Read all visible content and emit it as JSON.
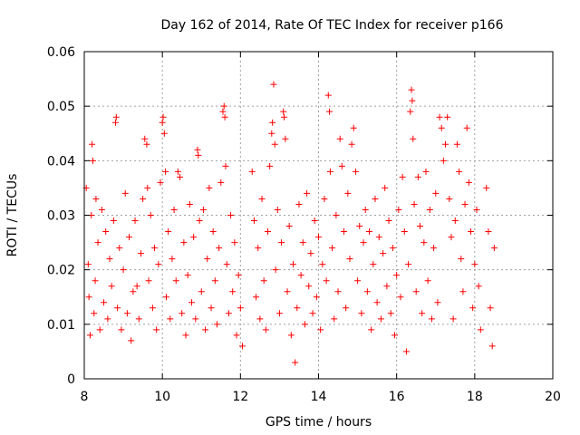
{
  "chart_data": {
    "type": "scatter",
    "title": "Day 162 of 2014, Rate Of TEC Index for receiver p166",
    "xlabel": "GPS time / hours",
    "ylabel": "ROTI / TECUs",
    "xlim": [
      8,
      20
    ],
    "ylim": [
      0,
      0.06
    ],
    "xticks": [
      8,
      10,
      12,
      14,
      16,
      18,
      20
    ],
    "xtick_labels": [
      "8",
      "10",
      "12",
      "14",
      "16",
      "18",
      "20"
    ],
    "yticks": [
      0,
      0.01,
      0.02,
      0.03,
      0.04,
      0.05,
      0.06
    ],
    "ytick_labels": [
      "0",
      "0.01",
      "0.02",
      "0.03",
      "0.04",
      "0.05",
      "0.06"
    ],
    "grid": true,
    "marker": "+",
    "marker_color": "#ff0000",
    "series": [
      {
        "name": "ROTI",
        "points": [
          [
            8.05,
            0.035
          ],
          [
            8.1,
            0.021
          ],
          [
            8.12,
            0.015
          ],
          [
            8.15,
            0.008
          ],
          [
            8.18,
            0.03
          ],
          [
            8.2,
            0.043
          ],
          [
            8.22,
            0.04
          ],
          [
            8.25,
            0.012
          ],
          [
            8.28,
            0.018
          ],
          [
            8.3,
            0.033
          ],
          [
            8.35,
            0.025
          ],
          [
            8.4,
            0.009
          ],
          [
            8.45,
            0.031
          ],
          [
            8.5,
            0.014
          ],
          [
            8.55,
            0.027
          ],
          [
            8.6,
            0.011
          ],
          [
            8.65,
            0.022
          ],
          [
            8.7,
            0.017
          ],
          [
            8.75,
            0.029
          ],
          [
            8.8,
            0.047
          ],
          [
            8.82,
            0.048
          ],
          [
            8.85,
            0.013
          ],
          [
            8.9,
            0.024
          ],
          [
            8.95,
            0.009
          ],
          [
            9.0,
            0.02
          ],
          [
            9.05,
            0.034
          ],
          [
            9.1,
            0.012
          ],
          [
            9.15,
            0.026
          ],
          [
            9.2,
            0.007
          ],
          [
            9.25,
            0.016
          ],
          [
            9.3,
            0.029
          ],
          [
            9.35,
            0.017
          ],
          [
            9.4,
            0.011
          ],
          [
            9.45,
            0.023
          ],
          [
            9.5,
            0.033
          ],
          [
            9.55,
            0.044
          ],
          [
            9.6,
            0.043
          ],
          [
            9.62,
            0.035
          ],
          [
            9.65,
            0.018
          ],
          [
            9.7,
            0.03
          ],
          [
            9.75,
            0.013
          ],
          [
            9.8,
            0.024
          ],
          [
            9.85,
            0.009
          ],
          [
            9.9,
            0.021
          ],
          [
            9.95,
            0.036
          ],
          [
            10.0,
            0.047
          ],
          [
            10.02,
            0.048
          ],
          [
            10.05,
            0.045
          ],
          [
            10.08,
            0.038
          ],
          [
            10.1,
            0.015
          ],
          [
            10.15,
            0.027
          ],
          [
            10.2,
            0.011
          ],
          [
            10.25,
            0.022
          ],
          [
            10.3,
            0.031
          ],
          [
            10.35,
            0.018
          ],
          [
            10.4,
            0.038
          ],
          [
            10.45,
            0.037
          ],
          [
            10.5,
            0.012
          ],
          [
            10.55,
            0.025
          ],
          [
            10.6,
            0.008
          ],
          [
            10.65,
            0.019
          ],
          [
            10.7,
            0.032
          ],
          [
            10.75,
            0.014
          ],
          [
            10.8,
            0.026
          ],
          [
            10.85,
            0.011
          ],
          [
            10.9,
            0.042
          ],
          [
            10.92,
            0.041
          ],
          [
            10.95,
            0.029
          ],
          [
            11.0,
            0.016
          ],
          [
            11.05,
            0.031
          ],
          [
            11.1,
            0.009
          ],
          [
            11.15,
            0.022
          ],
          [
            11.2,
            0.035
          ],
          [
            11.25,
            0.013
          ],
          [
            11.3,
            0.027
          ],
          [
            11.35,
            0.018
          ],
          [
            11.4,
            0.01
          ],
          [
            11.45,
            0.024
          ],
          [
            11.5,
            0.036
          ],
          [
            11.55,
            0.049
          ],
          [
            11.58,
            0.05
          ],
          [
            11.6,
            0.048
          ],
          [
            11.62,
            0.039
          ],
          [
            11.65,
            0.021
          ],
          [
            11.7,
            0.012
          ],
          [
            11.75,
            0.03
          ],
          [
            11.8,
            0.016
          ],
          [
            11.85,
            0.025
          ],
          [
            11.9,
            0.008
          ],
          [
            11.95,
            0.019
          ],
          [
            12.0,
            0.013
          ],
          [
            12.05,
            0.006
          ],
          [
            12.3,
            0.038
          ],
          [
            12.35,
            0.029
          ],
          [
            12.4,
            0.015
          ],
          [
            12.45,
            0.024
          ],
          [
            12.5,
            0.011
          ],
          [
            12.55,
            0.033
          ],
          [
            12.6,
            0.018
          ],
          [
            12.65,
            0.009
          ],
          [
            12.7,
            0.027
          ],
          [
            12.75,
            0.039
          ],
          [
            12.8,
            0.045
          ],
          [
            12.82,
            0.047
          ],
          [
            12.85,
            0.054
          ],
          [
            12.88,
            0.043
          ],
          [
            12.9,
            0.02
          ],
          [
            12.95,
            0.031
          ],
          [
            13.0,
            0.012
          ],
          [
            13.05,
            0.025
          ],
          [
            13.1,
            0.049
          ],
          [
            13.12,
            0.048
          ],
          [
            13.15,
            0.044
          ],
          [
            13.2,
            0.016
          ],
          [
            13.25,
            0.028
          ],
          [
            13.3,
            0.008
          ],
          [
            13.35,
            0.021
          ],
          [
            13.4,
            0.003
          ],
          [
            13.45,
            0.013
          ],
          [
            13.5,
            0.032
          ],
          [
            13.55,
            0.019
          ],
          [
            13.6,
            0.025
          ],
          [
            13.65,
            0.01
          ],
          [
            13.7,
            0.034
          ],
          [
            13.75,
            0.017
          ],
          [
            13.8,
            0.023
          ],
          [
            13.85,
            0.012
          ],
          [
            13.9,
            0.029
          ],
          [
            13.95,
            0.015
          ],
          [
            14.0,
            0.026
          ],
          [
            14.05,
            0.009
          ],
          [
            14.1,
            0.021
          ],
          [
            14.15,
            0.033
          ],
          [
            14.2,
            0.018
          ],
          [
            14.25,
            0.052
          ],
          [
            14.28,
            0.049
          ],
          [
            14.3,
            0.038
          ],
          [
            14.35,
            0.024
          ],
          [
            14.4,
            0.011
          ],
          [
            14.45,
            0.03
          ],
          [
            14.5,
            0.016
          ],
          [
            14.55,
            0.044
          ],
          [
            14.6,
            0.039
          ],
          [
            14.65,
            0.027
          ],
          [
            14.7,
            0.013
          ],
          [
            14.75,
            0.034
          ],
          [
            14.8,
            0.022
          ],
          [
            14.85,
            0.043
          ],
          [
            14.9,
            0.046
          ],
          [
            14.95,
            0.038
          ],
          [
            15.0,
            0.018
          ],
          [
            15.05,
            0.028
          ],
          [
            15.1,
            0.012
          ],
          [
            15.15,
            0.025
          ],
          [
            15.2,
            0.031
          ],
          [
            15.25,
            0.016
          ],
          [
            15.3,
            0.027
          ],
          [
            15.35,
            0.009
          ],
          [
            15.4,
            0.021
          ],
          [
            15.45,
            0.033
          ],
          [
            15.5,
            0.014
          ],
          [
            15.55,
            0.026
          ],
          [
            15.6,
            0.011
          ],
          [
            15.65,
            0.023
          ],
          [
            15.7,
            0.035
          ],
          [
            15.75,
            0.017
          ],
          [
            15.8,
            0.029
          ],
          [
            15.85,
            0.012
          ],
          [
            15.9,
            0.024
          ],
          [
            15.95,
            0.008
          ],
          [
            16.0,
            0.019
          ],
          [
            16.05,
            0.031
          ],
          [
            16.1,
            0.015
          ],
          [
            16.15,
            0.037
          ],
          [
            16.2,
            0.027
          ],
          [
            16.25,
            0.005
          ],
          [
            16.3,
            0.021
          ],
          [
            16.35,
            0.049
          ],
          [
            16.38,
            0.053
          ],
          [
            16.4,
            0.051
          ],
          [
            16.42,
            0.044
          ],
          [
            16.45,
            0.032
          ],
          [
            16.5,
            0.016
          ],
          [
            16.55,
            0.037
          ],
          [
            16.6,
            0.028
          ],
          [
            16.65,
            0.012
          ],
          [
            16.7,
            0.025
          ],
          [
            16.75,
            0.038
          ],
          [
            16.8,
            0.018
          ],
          [
            16.85,
            0.031
          ],
          [
            16.9,
            0.011
          ],
          [
            16.95,
            0.024
          ],
          [
            17.0,
            0.034
          ],
          [
            17.05,
            0.014
          ],
          [
            17.1,
            0.048
          ],
          [
            17.15,
            0.046
          ],
          [
            17.2,
            0.04
          ],
          [
            17.25,
            0.043
          ],
          [
            17.3,
            0.048
          ],
          [
            17.35,
            0.033
          ],
          [
            17.4,
            0.026
          ],
          [
            17.45,
            0.011
          ],
          [
            17.5,
            0.029
          ],
          [
            17.55,
            0.043
          ],
          [
            17.6,
            0.038
          ],
          [
            17.65,
            0.022
          ],
          [
            17.7,
            0.016
          ],
          [
            17.75,
            0.032
          ],
          [
            17.8,
            0.046
          ],
          [
            17.85,
            0.036
          ],
          [
            17.9,
            0.027
          ],
          [
            17.95,
            0.013
          ],
          [
            18.0,
            0.021
          ],
          [
            18.05,
            0.031
          ],
          [
            18.1,
            0.017
          ],
          [
            18.15,
            0.009
          ],
          [
            18.3,
            0.035
          ],
          [
            18.35,
            0.027
          ],
          [
            18.4,
            0.013
          ],
          [
            18.45,
            0.006
          ],
          [
            18.5,
            0.024
          ]
        ]
      }
    ]
  }
}
